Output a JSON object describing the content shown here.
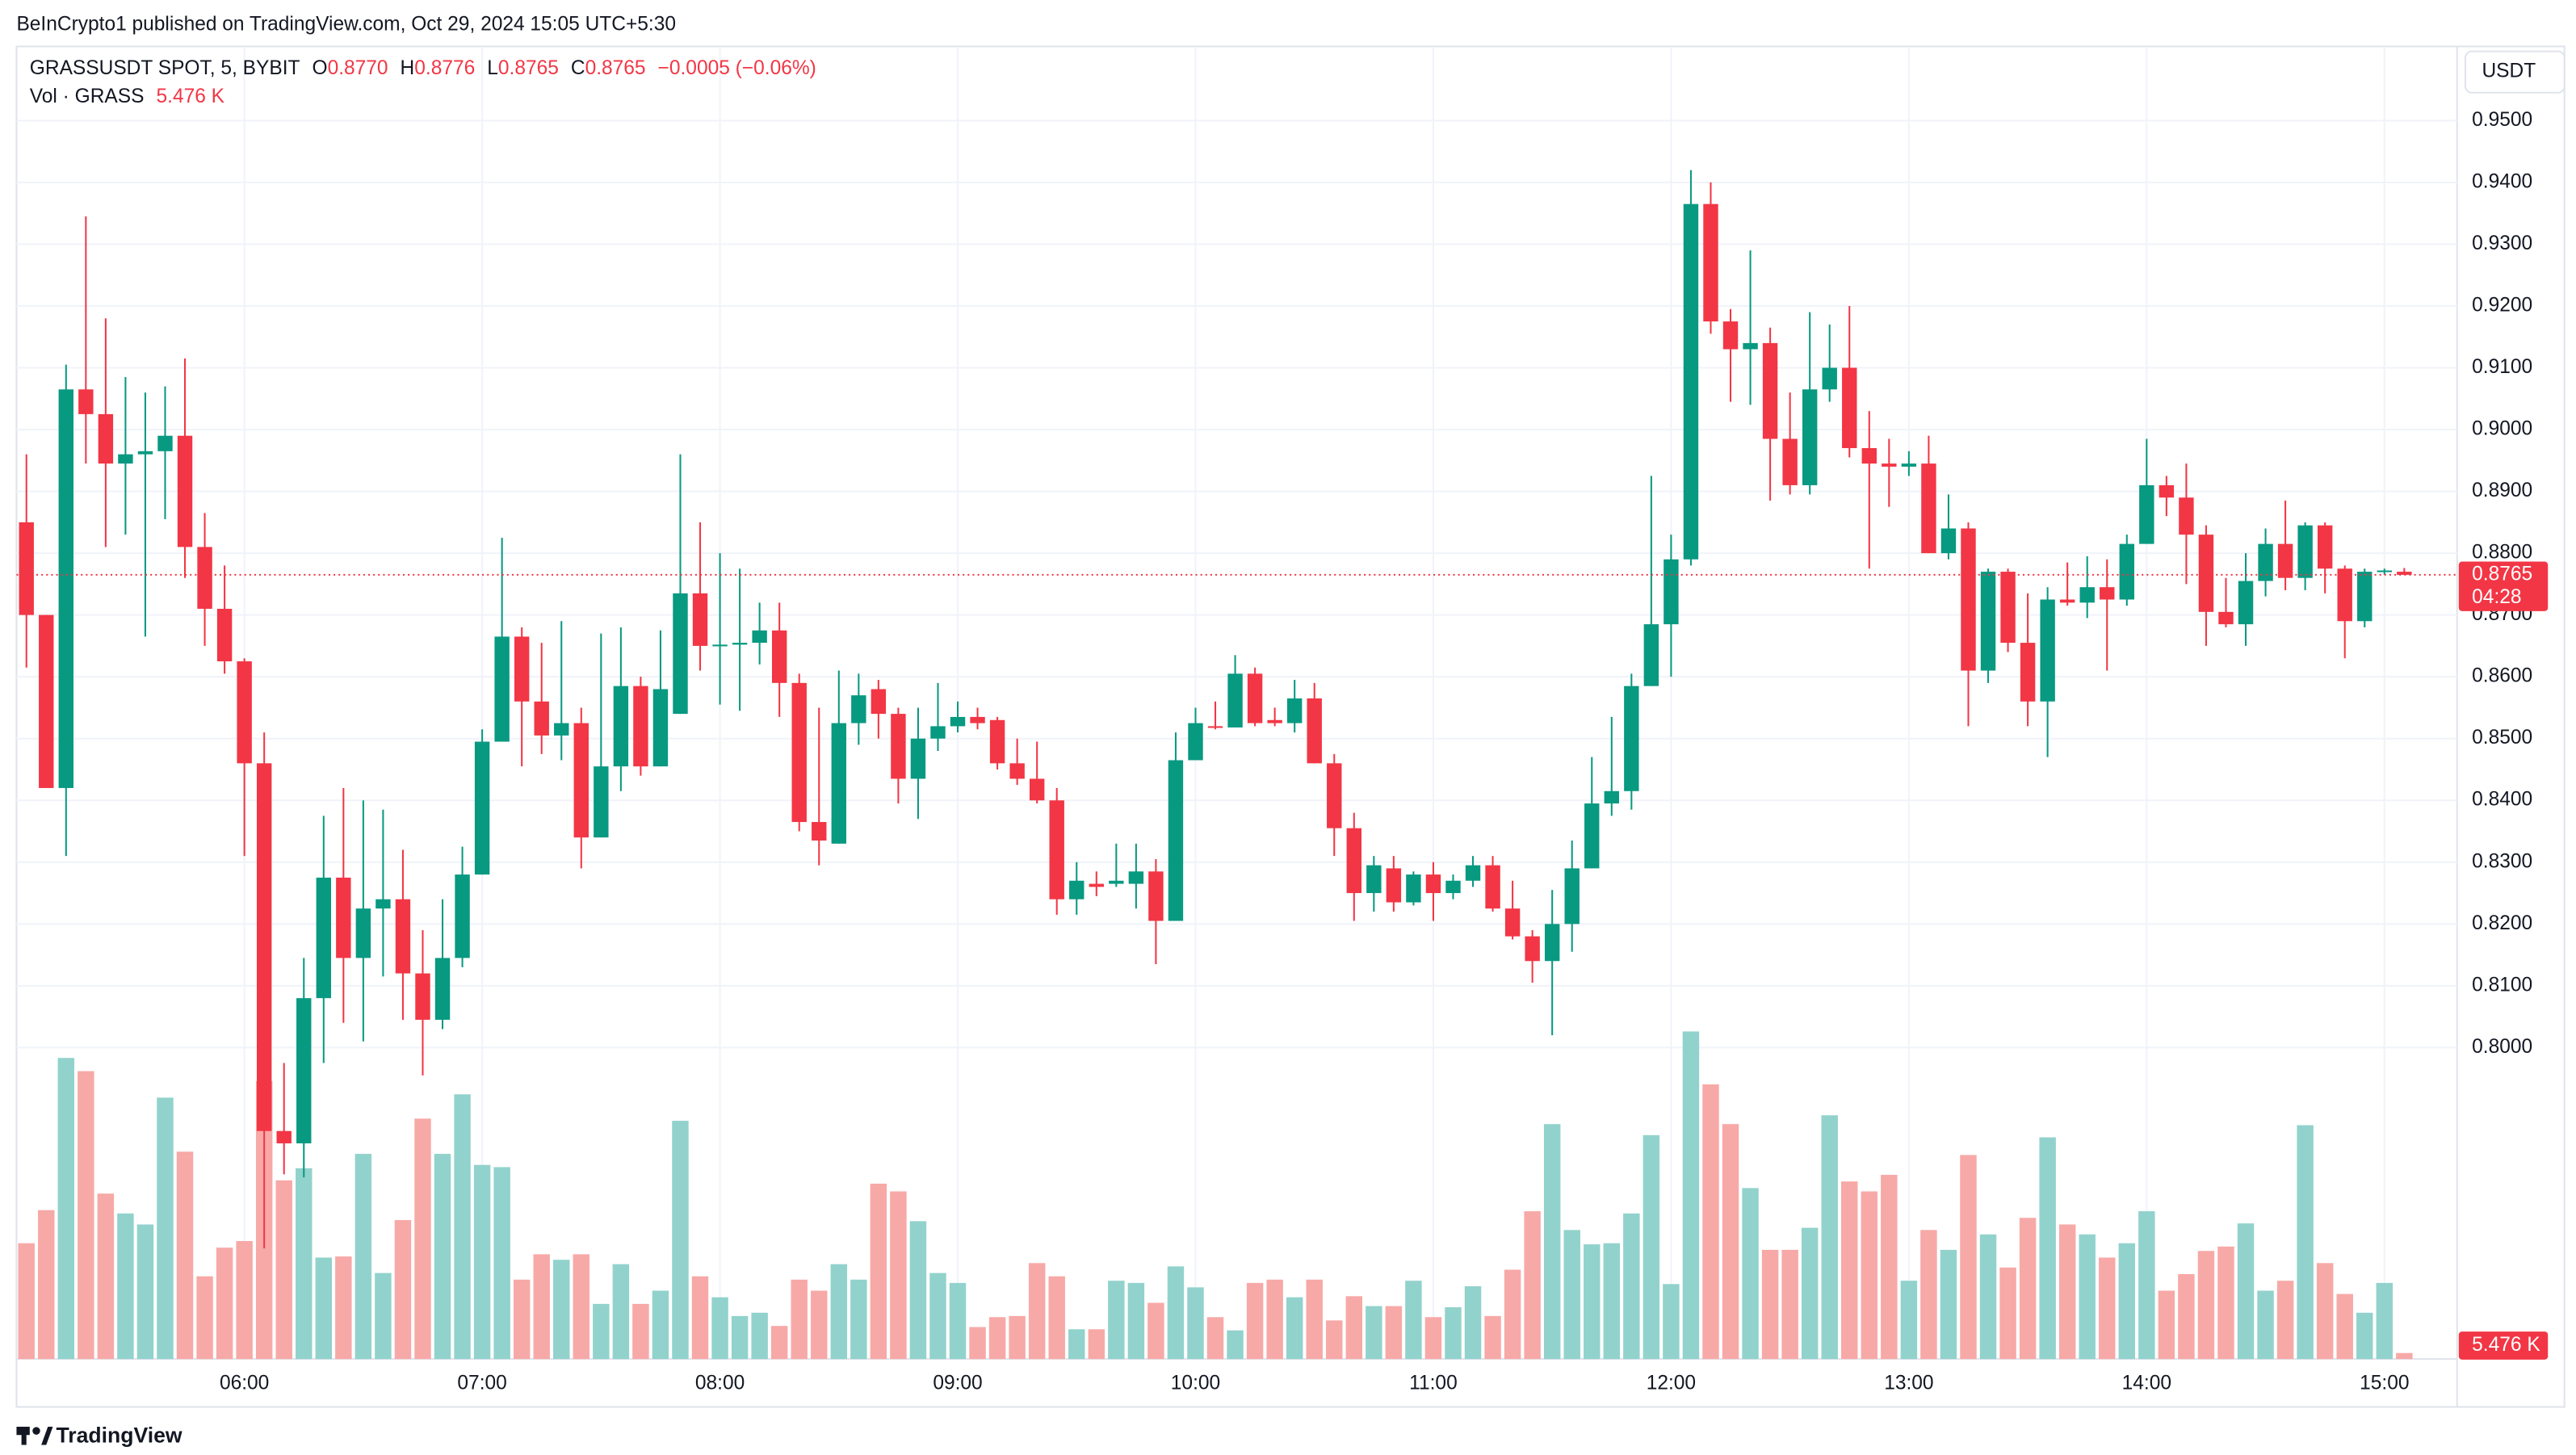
{
  "header": {
    "publisher": "BeInCrypto1 published on TradingView.com, Oct 29, 2024 15:05 UTC+5:30"
  },
  "legend": {
    "symbol": "GRASSUSDT SPOT, 5, BYBIT",
    "o_label": "O",
    "open": "0.8770",
    "h_label": "H",
    "high": "0.8776",
    "l_label": "L",
    "low": "0.8765",
    "c_label": "C",
    "close": "0.8765",
    "change": "−0.0005 (−0.06%)",
    "volume_name": "Vol · GRASS"
  },
  "chart_data": {
    "type": "candlestick",
    "x": [
      "05:05",
      "05:10",
      "05:15",
      "05:20",
      "05:25",
      "05:30",
      "05:35",
      "05:40",
      "05:45",
      "05:50",
      "05:55",
      "06:00",
      "06:05",
      "06:10",
      "06:15",
      "06:20",
      "06:25",
      "06:30",
      "06:35",
      "06:40",
      "06:45",
      "06:50",
      "06:55",
      "07:00",
      "07:05",
      "07:10",
      "07:15",
      "07:20",
      "07:25",
      "07:30",
      "07:35",
      "07:40",
      "07:45",
      "07:50",
      "07:55",
      "08:00",
      "08:05",
      "08:10",
      "08:15",
      "08:20",
      "08:25",
      "08:30",
      "08:35",
      "08:40",
      "08:45",
      "08:50",
      "08:55",
      "09:00",
      "09:05",
      "09:10",
      "09:15",
      "09:20",
      "09:25",
      "09:30",
      "09:35",
      "09:40",
      "09:45",
      "09:50",
      "09:55",
      "10:00",
      "10:05",
      "10:10",
      "10:15",
      "10:20",
      "10:25",
      "10:30",
      "10:35",
      "10:40",
      "10:45",
      "10:50",
      "10:55",
      "11:00",
      "11:05",
      "11:10",
      "11:15",
      "11:20",
      "11:25",
      "11:30",
      "11:35",
      "11:40",
      "11:45",
      "11:50",
      "11:55",
      "12:00",
      "12:05",
      "12:10",
      "12:15",
      "12:20",
      "12:25",
      "12:30",
      "12:35",
      "12:40",
      "12:45",
      "12:50",
      "12:55",
      "13:00",
      "13:05",
      "13:10",
      "13:15",
      "13:20",
      "13:25",
      "13:30",
      "13:35",
      "13:40",
      "13:45",
      "13:50",
      "13:55",
      "14:00",
      "14:05",
      "14:10",
      "14:15",
      "14:20",
      "14:25",
      "14:30",
      "14:35",
      "14:40",
      "14:45",
      "14:50",
      "14:55",
      "15:00",
      "15:05"
    ],
    "open": [
      0.885,
      0.87,
      0.842,
      0.9065,
      0.9025,
      0.8945,
      0.896,
      0.8965,
      0.899,
      0.881,
      0.871,
      0.8625,
      0.846,
      0.7865,
      0.7845,
      0.808,
      0.8275,
      0.8145,
      0.8225,
      0.824,
      0.812,
      0.8045,
      0.8145,
      0.828,
      0.8495,
      0.8665,
      0.856,
      0.8505,
      0.8525,
      0.834,
      0.8455,
      0.8585,
      0.8455,
      0.854,
      0.8735,
      0.865,
      0.8652,
      0.8655,
      0.8675,
      0.859,
      0.8365,
      0.833,
      0.8525,
      0.858,
      0.854,
      0.8435,
      0.85,
      0.852,
      0.8535,
      0.853,
      0.846,
      0.8435,
      0.84,
      0.824,
      0.8265,
      0.8265,
      0.8265,
      0.8285,
      0.8205,
      0.8465,
      0.852,
      0.8518,
      0.8605,
      0.853,
      0.8525,
      0.8565,
      0.846,
      0.8355,
      0.825,
      0.829,
      0.8235,
      0.828,
      0.825,
      0.827,
      0.8295,
      0.8225,
      0.818,
      0.814,
      0.82,
      0.829,
      0.8395,
      0.8415,
      0.8585,
      0.8685,
      0.879,
      0.9365,
      0.9175,
      0.913,
      0.914,
      0.8985,
      0.891,
      0.9065,
      0.91,
      0.897,
      0.8945,
      0.894,
      0.8945,
      0.88,
      0.884,
      0.861,
      0.877,
      0.8655,
      0.856,
      0.8725,
      0.872,
      0.8745,
      0.8725,
      0.8815,
      0.891,
      0.889,
      0.883,
      0.8705,
      0.8685,
      0.8755,
      0.8815,
      0.876,
      0.8845,
      0.8775,
      0.869,
      0.877,
      0.877
    ],
    "high": [
      0.896,
      0.87,
      0.9105,
      0.9345,
      0.918,
      0.9085,
      0.906,
      0.907,
      0.9115,
      0.8865,
      0.878,
      0.863,
      0.851,
      0.7975,
      0.8145,
      0.8375,
      0.842,
      0.84,
      0.8385,
      0.832,
      0.819,
      0.824,
      0.8325,
      0.8515,
      0.8825,
      0.868,
      0.8655,
      0.869,
      0.855,
      0.867,
      0.868,
      0.86,
      0.8675,
      0.896,
      0.885,
      0.88,
      0.8775,
      0.872,
      0.872,
      0.8605,
      0.855,
      0.861,
      0.8605,
      0.8595,
      0.855,
      0.855,
      0.859,
      0.856,
      0.855,
      0.8535,
      0.85,
      0.8495,
      0.842,
      0.83,
      0.8285,
      0.833,
      0.833,
      0.8305,
      0.851,
      0.855,
      0.856,
      0.8635,
      0.8615,
      0.855,
      0.8595,
      0.859,
      0.8475,
      0.838,
      0.831,
      0.831,
      0.8285,
      0.83,
      0.828,
      0.831,
      0.831,
      0.827,
      0.819,
      0.8255,
      0.8335,
      0.847,
      0.8535,
      0.8605,
      0.8925,
      0.883,
      0.942,
      0.94,
      0.9195,
      0.929,
      0.9165,
      0.906,
      0.919,
      0.917,
      0.92,
      0.903,
      0.8985,
      0.8965,
      0.899,
      0.8895,
      0.885,
      0.8775,
      0.8775,
      0.8735,
      0.8745,
      0.8785,
      0.8795,
      0.879,
      0.883,
      0.8985,
      0.8925,
      0.8945,
      0.8845,
      0.876,
      0.88,
      0.884,
      0.8885,
      0.885,
      0.885,
      0.878,
      0.8775,
      0.8775,
      0.8776
    ],
    "low": [
      0.8615,
      0.842,
      0.831,
      0.8945,
      0.881,
      0.883,
      0.8665,
      0.8855,
      0.876,
      0.865,
      0.8605,
      0.831,
      0.7675,
      0.7795,
      0.779,
      0.7975,
      0.804,
      0.801,
      0.8115,
      0.8045,
      0.7955,
      0.803,
      0.813,
      0.828,
      0.8495,
      0.8455,
      0.8475,
      0.8465,
      0.829,
      0.834,
      0.8415,
      0.844,
      0.8455,
      0.854,
      0.861,
      0.8555,
      0.8545,
      0.862,
      0.8535,
      0.835,
      0.8295,
      0.833,
      0.849,
      0.85,
      0.8395,
      0.837,
      0.848,
      0.851,
      0.8515,
      0.845,
      0.8425,
      0.8395,
      0.8215,
      0.8215,
      0.8245,
      0.826,
      0.8225,
      0.8135,
      0.8205,
      0.8465,
      0.8515,
      0.8518,
      0.852,
      0.852,
      0.851,
      0.846,
      0.831,
      0.8205,
      0.822,
      0.822,
      0.823,
      0.8205,
      0.824,
      0.826,
      0.822,
      0.8175,
      0.8105,
      0.802,
      0.8155,
      0.829,
      0.8375,
      0.8385,
      0.8585,
      0.86,
      0.878,
      0.9155,
      0.9045,
      0.904,
      0.8885,
      0.8895,
      0.8895,
      0.9045,
      0.8955,
      0.8775,
      0.8875,
      0.8925,
      0.88,
      0.879,
      0.852,
      0.859,
      0.864,
      0.852,
      0.847,
      0.8715,
      0.8695,
      0.861,
      0.8715,
      0.8815,
      0.886,
      0.875,
      0.865,
      0.868,
      0.865,
      0.873,
      0.874,
      0.874,
      0.8735,
      0.863,
      0.868,
      0.8765,
      0.8765
    ],
    "close": [
      0.87,
      0.842,
      0.9065,
      0.9025,
      0.8945,
      0.896,
      0.8965,
      0.899,
      0.881,
      0.871,
      0.8625,
      0.846,
      0.7865,
      0.7845,
      0.808,
      0.8275,
      0.8145,
      0.8225,
      0.824,
      0.812,
      0.8045,
      0.8145,
      0.828,
      0.8495,
      0.8665,
      0.856,
      0.8505,
      0.8525,
      0.834,
      0.8455,
      0.8585,
      0.8455,
      0.858,
      0.8735,
      0.865,
      0.8652,
      0.8655,
      0.8675,
      0.859,
      0.8365,
      0.8335,
      0.8525,
      0.857,
      0.854,
      0.8435,
      0.85,
      0.852,
      0.8535,
      0.8525,
      0.846,
      0.8435,
      0.84,
      0.824,
      0.827,
      0.826,
      0.827,
      0.8285,
      0.8205,
      0.8465,
      0.8525,
      0.8518,
      0.8605,
      0.8525,
      0.8525,
      0.8565,
      0.846,
      0.8355,
      0.825,
      0.8295,
      0.8235,
      0.828,
      0.825,
      0.827,
      0.8295,
      0.8225,
      0.818,
      0.814,
      0.82,
      0.829,
      0.8395,
      0.8415,
      0.8585,
      0.8685,
      0.879,
      0.9365,
      0.9175,
      0.913,
      0.914,
      0.8985,
      0.891,
      0.9065,
      0.91,
      0.897,
      0.8945,
      0.894,
      0.8945,
      0.88,
      0.884,
      0.861,
      0.877,
      0.8655,
      0.856,
      0.8725,
      0.872,
      0.8745,
      0.8725,
      0.8815,
      0.891,
      0.889,
      0.883,
      0.8705,
      0.8685,
      0.8755,
      0.8815,
      0.876,
      0.8845,
      0.8775,
      0.869,
      0.877,
      0.8772,
      0.8765
    ],
    "volume": [
      105,
      135,
      273,
      261,
      150,
      132,
      122,
      237,
      188,
      75,
      101,
      107,
      252,
      162,
      173,
      92,
      93,
      186,
      78,
      126,
      218,
      186,
      240,
      176,
      174,
      72,
      95,
      90,
      95,
      50,
      86,
      50,
      62,
      216,
      75,
      56,
      39,
      42,
      30,
      72,
      62,
      86,
      72,
      159,
      152,
      125,
      78,
      69,
      29,
      38,
      39,
      87,
      75,
      27,
      27,
      71,
      69,
      51,
      84,
      65,
      38,
      26,
      69,
      72,
      56,
      72,
      35,
      57,
      48,
      48,
      71,
      38,
      47,
      66,
      39,
      81,
      134,
      213,
      117,
      104,
      105,
      132,
      203,
      68,
      297,
      249,
      213,
      155,
      99,
      99,
      119,
      221,
      161,
      152,
      167,
      71,
      117,
      99,
      185,
      113,
      83,
      128,
      201,
      122,
      113,
      92,
      105,
      134,
      62,
      77,
      98,
      102,
      123,
      62,
      71,
      212,
      87,
      59,
      42,
      69,
      5.476
    ],
    "last_volume_label": "5.476 K",
    "volume_lim": [
      0,
      1190
    ],
    "ylim": [
      0.7496,
      0.962
    ],
    "yticks": [
      {
        "value": 0.8,
        "label": "0.8000"
      },
      {
        "value": 0.81,
        "label": "0.8100"
      },
      {
        "value": 0.82,
        "label": "0.8200"
      },
      {
        "value": 0.83,
        "label": "0.8300"
      },
      {
        "value": 0.84,
        "label": "0.8400"
      },
      {
        "value": 0.85,
        "label": "0.8500"
      },
      {
        "value": 0.86,
        "label": "0.8600"
      },
      {
        "value": 0.87,
        "label": "0.8700"
      },
      {
        "value": 0.88,
        "label": "0.8800"
      },
      {
        "value": 0.89,
        "label": "0.8900"
      },
      {
        "value": 0.9,
        "label": "0.9000"
      },
      {
        "value": 0.91,
        "label": "0.9100"
      },
      {
        "value": 0.92,
        "label": "0.9200"
      },
      {
        "value": 0.93,
        "label": "0.9300"
      },
      {
        "value": 0.94,
        "label": "0.9400"
      },
      {
        "value": 0.95,
        "label": "0.9500"
      }
    ],
    "xticks": [
      "06:00",
      "07:00",
      "08:00",
      "09:00",
      "10:00",
      "11:00",
      "12:00",
      "13:00",
      "14:00",
      "15:00"
    ],
    "y_unit": "USDT",
    "up_color": "#089981",
    "down_color": "#f23645",
    "up_volume_color": "#92d2cc",
    "down_volume_color": "#f7a9a7",
    "grid": true,
    "last_price": {
      "value": 0.8765,
      "label": "0.8765",
      "countdown": "04:28"
    }
  },
  "footer": {
    "brand": "TradingView"
  }
}
